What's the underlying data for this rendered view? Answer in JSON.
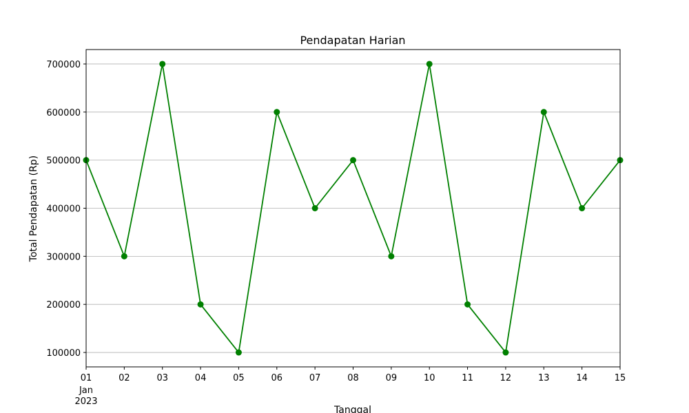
{
  "chart_data": {
    "type": "line",
    "title": "Pendapatan Harian",
    "x_label": "Tanggal",
    "y_label": "Total Pendapatan (Rp)",
    "categories": [
      "01",
      "02",
      "03",
      "04",
      "05",
      "06",
      "07",
      "08",
      "09",
      "10",
      "11",
      "12",
      "13",
      "14",
      "15"
    ],
    "x_month_label": "Jan",
    "x_year_label": "2023",
    "series": [
      {
        "name": "Total Pendapatan",
        "color": "#008000",
        "values": [
          500000,
          300000,
          700000,
          200000,
          100000,
          600000,
          400000,
          500000,
          300000,
          700000,
          200000,
          100000,
          600000,
          400000,
          500000
        ]
      }
    ],
    "ylim": [
      70000,
      730000
    ],
    "yticks": [
      100000,
      200000,
      300000,
      400000,
      500000,
      600000,
      700000
    ],
    "grid": true
  }
}
